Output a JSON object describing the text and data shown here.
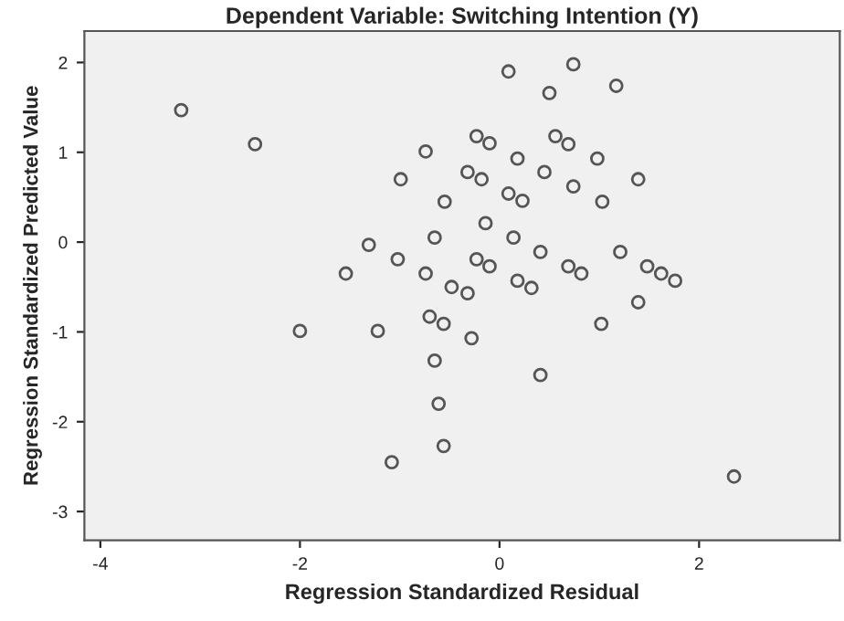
{
  "chart_data": {
    "type": "scatter",
    "title": "Dependent Variable: Switching Intention (Y)",
    "xlabel": "Regression Standardized Residual",
    "ylabel": "Regression Standardized Predicted Value",
    "x": [
      -3.19,
      -2.45,
      -0.74,
      -0.99,
      -0.55,
      -0.65,
      -1.31,
      -1.02,
      -1.54,
      -0.74,
      -0.48,
      0.09,
      0.74,
      0.5,
      1.17,
      -0.23,
      -0.1,
      0.56,
      0.69,
      0.18,
      0.98,
      -0.32,
      -0.18,
      0.45,
      0.74,
      1.39,
      0.09,
      0.23,
      1.03,
      -0.14,
      0.14,
      0.41,
      1.21,
      -0.23,
      -0.1,
      0.69,
      0.82,
      1.48,
      1.62,
      1.76,
      -0.32,
      0.18,
      0.32,
      1.39,
      -0.7,
      -0.56,
      -0.28,
      1.02,
      -0.65,
      0.41,
      -0.61,
      -0.56,
      2.35,
      -2.0,
      -1.22,
      -1.08
    ],
    "values": [
      1.47,
      1.09,
      1.01,
      0.7,
      0.45,
      0.05,
      -0.03,
      -0.19,
      -0.35,
      -0.35,
      -0.5,
      1.9,
      1.98,
      1.66,
      1.74,
      1.18,
      1.1,
      1.18,
      1.09,
      0.93,
      0.93,
      0.78,
      0.7,
      0.78,
      0.62,
      0.7,
      0.54,
      0.46,
      0.45,
      0.21,
      0.05,
      -0.11,
      -0.11,
      -0.19,
      -0.27,
      -0.27,
      -0.35,
      -0.27,
      -0.35,
      -0.43,
      -0.57,
      -0.43,
      -0.51,
      -0.67,
      -0.83,
      -0.91,
      -1.07,
      -0.91,
      -1.32,
      -1.48,
      -1.8,
      -2.27,
      -2.61,
      -0.99,
      -0.99,
      -2.45
    ],
    "color": "#555555",
    "marker": "circle",
    "xlim": [
      -4.16,
      3.41
    ],
    "ylim": [
      -3.32,
      2.35
    ],
    "xticks": [
      -4,
      -2,
      0,
      2
    ],
    "yticks": [
      -3,
      -2,
      -1,
      0,
      1,
      2
    ],
    "grid": false,
    "legend": false
  }
}
